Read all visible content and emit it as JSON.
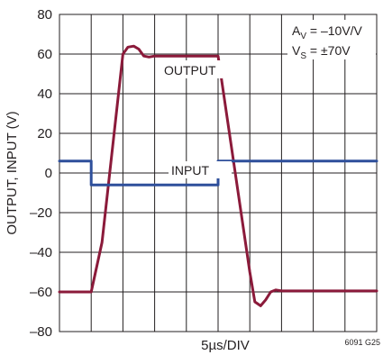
{
  "chart_data": {
    "type": "line",
    "title": "",
    "xlabel": "5µs/DIV",
    "ylabel": "OUTPUT, INPUT (V)",
    "x_units": "µs",
    "x_per_division_us": 5,
    "xlim": [
      0,
      50
    ],
    "ylim": [
      -80,
      80
    ],
    "y_ticks": [
      80,
      60,
      40,
      20,
      0,
      -20,
      -40,
      -60,
      -80
    ],
    "y_tick_labels": [
      "80",
      "60",
      "40",
      "20",
      "0",
      "–20",
      "–40",
      "–60",
      "–80"
    ],
    "grid": true,
    "grid_divisions_x": 10,
    "series": [
      {
        "name": "OUTPUT",
        "color": "#8b1a3a",
        "x": [
          0,
          5.0,
          6.7,
          10.0,
          10.8,
          11.7,
          12.5,
          13.3,
          14.1,
          15.0,
          25.0,
          30.0,
          30.8,
          31.7,
          32.5,
          33.3,
          34.1,
          35.0,
          50.0
        ],
        "y": [
          -60,
          -60,
          -35,
          60,
          63.5,
          64,
          62.5,
          59,
          58.5,
          59,
          59,
          -50,
          -65,
          -67,
          -64,
          -60,
          -59,
          -59.5,
          -59.5
        ]
      },
      {
        "name": "INPUT",
        "color": "#2e4f9b",
        "x": [
          0,
          5.0,
          5.0,
          25.0,
          25.0,
          50.0
        ],
        "y": [
          6,
          6,
          -6,
          -6,
          6,
          6
        ]
      }
    ],
    "annotations": {
      "gain_prefix": "A",
      "gain_sub": "V",
      "gain_value": " = –10V/V",
      "supply_prefix": "V",
      "supply_sub": "S",
      "supply_value": " = ±70V",
      "figure_id": "6091 G25"
    }
  }
}
